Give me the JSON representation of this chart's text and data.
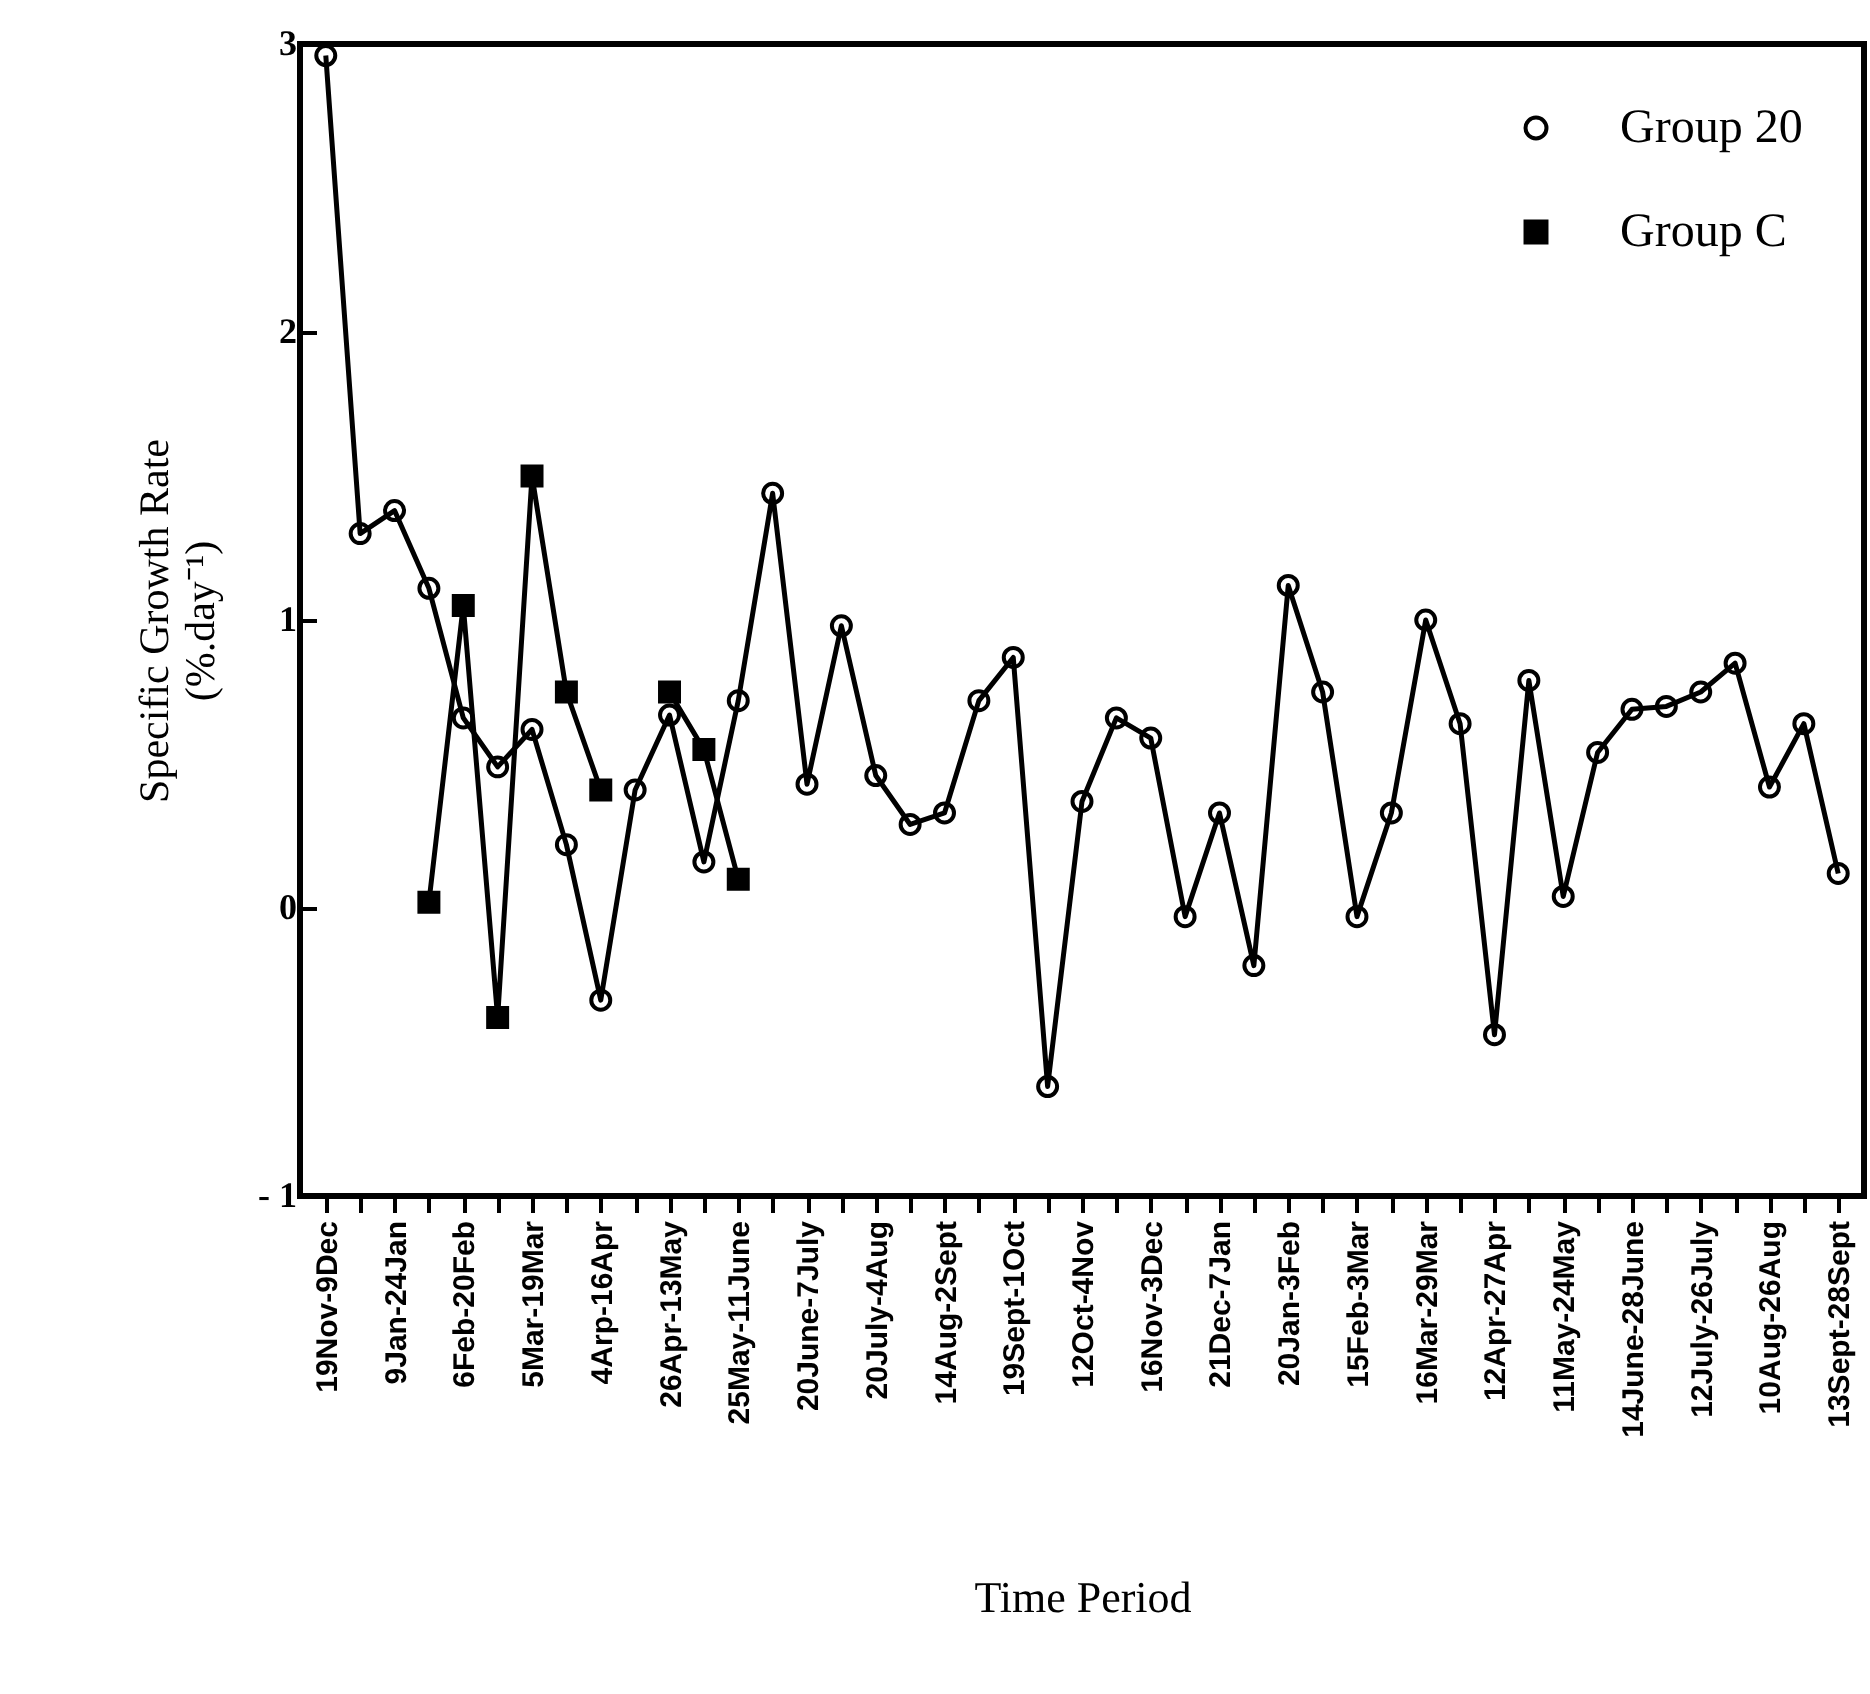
{
  "chart_data": {
    "type": "line",
    "xlabel": "Time Period",
    "ylabel": "Specific Growth Rate\n(%.day⁻¹)",
    "categories": [
      "19Nov-9Dec",
      null,
      "9Jan-24Jan",
      null,
      "6Feb-20Feb",
      null,
      "5Mar-19Mar",
      null,
      "4Arp-16Apr",
      null,
      "26Apr-13May",
      null,
      "25May-11June",
      null,
      "20June-7July",
      null,
      "20July-4Aug",
      null,
      "14Aug-2Sept",
      null,
      "19Sept-1Oct",
      null,
      "12Oct-4Nov",
      null,
      "16Nov-3Dec",
      null,
      "21Dec-7Jan",
      null,
      "20Jan-3Feb",
      null,
      "15Feb-3Mar",
      null,
      "16Mar-29Mar",
      null,
      "12Apr-27Apr",
      null,
      "11May-24May",
      null,
      "14June-28June",
      null,
      "12July-26July",
      null,
      "10Aug-26Aug",
      null,
      "13Sept-28Sept"
    ],
    "series": [
      {
        "name": "Group 20",
        "color": "#000000",
        "marker": "circle",
        "values": [
          2.96,
          1.3,
          1.38,
          1.11,
          0.66,
          0.49,
          0.62,
          0.22,
          -0.32,
          0.41,
          0.67,
          0.16,
          0.72,
          1.44,
          0.43,
          0.98,
          0.46,
          0.29,
          0.33,
          0.72,
          0.87,
          -0.62,
          0.37,
          0.66,
          0.59,
          -0.03,
          0.33,
          -0.2,
          1.12,
          0.75,
          -0.03,
          0.33,
          1.0,
          0.64,
          -0.44,
          0.79,
          0.04,
          0.54,
          0.69,
          0.7,
          0.75,
          0.85,
          0.42,
          0.64,
          0.12
        ]
      },
      {
        "name": "Group C",
        "color": "#000000",
        "marker": "square",
        "values": [
          null,
          null,
          null,
          0.02,
          1.05,
          -0.38,
          1.5,
          0.75,
          0.41,
          null,
          0.75,
          0.55,
          0.1,
          null,
          null,
          null,
          null,
          null,
          null,
          null,
          null,
          null,
          null,
          null,
          null,
          null,
          null,
          null,
          null,
          null,
          null,
          null,
          null,
          null,
          null,
          null,
          null,
          null,
          null,
          null,
          null,
          null,
          null,
          null,
          null
        ]
      }
    ],
    "ylim": [
      -1,
      3
    ],
    "yticks": [
      {
        "value": -1,
        "label": "- 1"
      },
      0,
      1,
      2,
      3
    ],
    "grid": false,
    "legend": "top right",
    "line_style": "solid"
  }
}
